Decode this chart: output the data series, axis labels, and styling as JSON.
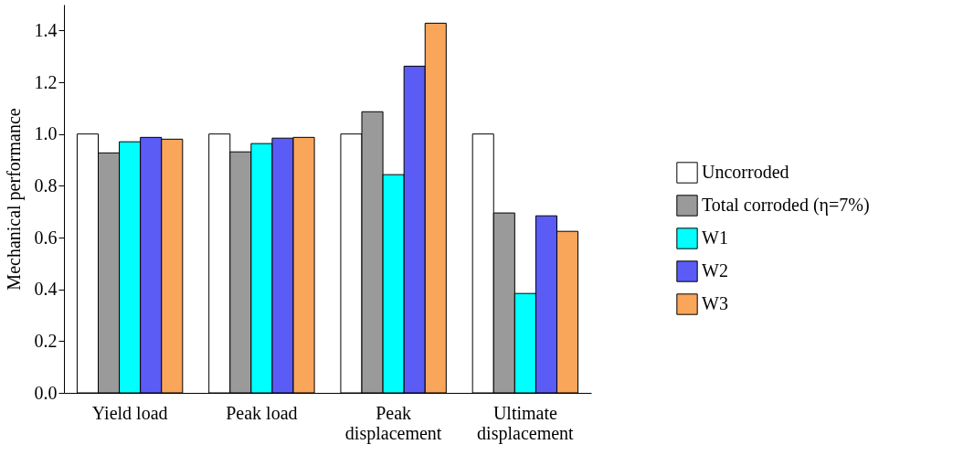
{
  "chart_data": {
    "type": "bar",
    "ylabel": "Mechanical performance",
    "categories": [
      "Yield load",
      "Peak load",
      "Peak displacement",
      "Ultimate displacement"
    ],
    "series": [
      {
        "name": "Uncorroded",
        "color": "#ffffff",
        "values": [
          1.0,
          1.0,
          1.0,
          1.0
        ]
      },
      {
        "name": "Total corroded (η=7%)",
        "color": "#9a9a9a",
        "values": [
          0.927,
          0.931,
          1.086,
          0.695
        ]
      },
      {
        "name": "W1",
        "color": "#00ffff",
        "values": [
          0.97,
          0.963,
          0.843,
          0.384
        ]
      },
      {
        "name": "W2",
        "color": "#5b5bf5",
        "values": [
          0.987,
          0.984,
          1.262,
          0.684
        ]
      },
      {
        "name": "W3",
        "color": "#f9a55a",
        "values": [
          0.98,
          0.987,
          1.428,
          0.624
        ]
      }
    ],
    "ylim": [
      0,
      1.5
    ],
    "yticks": [
      {
        "value": 0,
        "label": "0.0"
      },
      0.2,
      0.4,
      0.6,
      0.8,
      {
        "value": 1,
        "label": "1.0"
      },
      1.2,
      1.4
    ],
    "grid": false,
    "legend": "right"
  }
}
